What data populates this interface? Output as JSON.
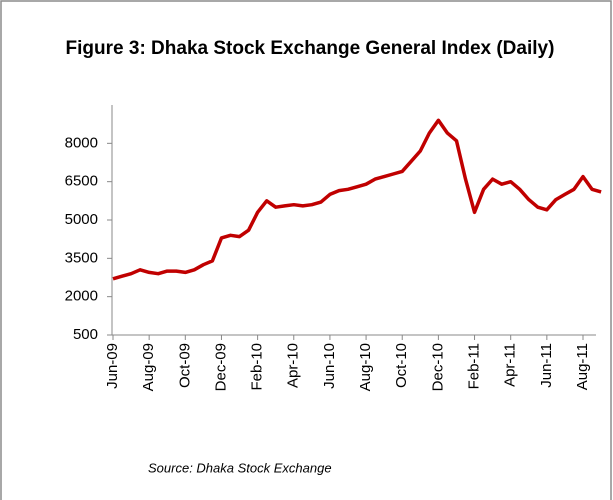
{
  "chart_data": {
    "type": "line",
    "title": "Figure 3: Dhaka Stock Exchange General Index (Daily)",
    "source": "Source: Dhaka Stock Exchange",
    "categories": [
      "Jun-09",
      null,
      null,
      null,
      "Aug-09",
      null,
      null,
      null,
      "Oct-09",
      null,
      null,
      null,
      "Dec-09",
      null,
      null,
      null,
      "Feb-10",
      null,
      null,
      null,
      "Apr-10",
      null,
      null,
      null,
      "Jun-10",
      null,
      null,
      null,
      "Aug-10",
      null,
      null,
      null,
      "Oct-10",
      null,
      null,
      null,
      "Dec-10",
      null,
      null,
      null,
      "Feb-11",
      null,
      null,
      null,
      "Apr-11",
      null,
      null,
      null,
      "Jun-11",
      null,
      null,
      null,
      "Aug-11",
      null,
      null
    ],
    "values": [
      2700,
      2800,
      2900,
      3050,
      2950,
      2900,
      3000,
      3000,
      2950,
      3050,
      3250,
      3400,
      4300,
      4400,
      4350,
      4600,
      5300,
      5750,
      5500,
      5550,
      5600,
      5550,
      5600,
      5700,
      6000,
      6150,
      6200,
      6300,
      6400,
      6600,
      6700,
      6800,
      6900,
      7300,
      7700,
      8400,
      8900,
      8400,
      8100,
      6600,
      5300,
      6200,
      6600,
      6400,
      6500,
      6200,
      5800,
      5500,
      5400,
      5800,
      6000,
      6200,
      6700,
      6200,
      6100
    ],
    "color": "#c00000",
    "ylim": [
      500,
      9500
    ],
    "yticks": [
      500,
      2000,
      3500,
      5000,
      6500,
      8000
    ]
  }
}
